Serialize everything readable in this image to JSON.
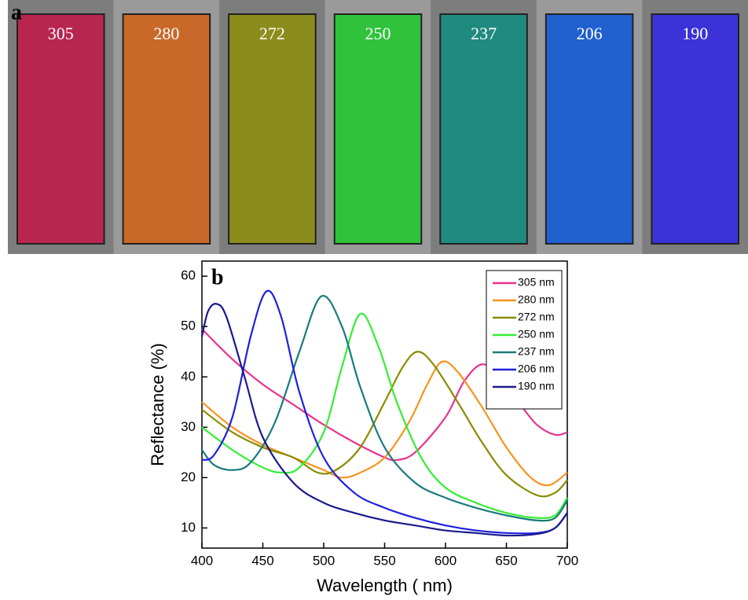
{
  "photo": {
    "label": "a",
    "swatches": [
      {
        "label": "305",
        "color": "#b8264f"
      },
      {
        "label": "280",
        "color": "#c8692a"
      },
      {
        "label": "272",
        "color": "#8c8c1c"
      },
      {
        "label": "250",
        "color": "#2fc23a"
      },
      {
        "label": "237",
        "color": "#1f8a80"
      },
      {
        "label": "206",
        "color": "#2160cf"
      },
      {
        "label": "190",
        "color": "#3b33d8"
      }
    ]
  },
  "chart_data": {
    "type": "line",
    "panel_label": "b",
    "x_label": "Wavelength (  nm)",
    "y_label": "Reflectance  (%)",
    "xlim": [
      400,
      700
    ],
    "ylim": [
      6,
      63
    ],
    "xticks": [
      400,
      450,
      500,
      550,
      600,
      650,
      700
    ],
    "yticks": [
      10,
      20,
      30,
      40,
      50,
      60
    ],
    "legend": "upper right",
    "series": [
      {
        "name": "305 nm",
        "color": "#e8338e",
        "x": [
          400,
          425,
          450,
          475,
          500,
          525,
          550,
          560,
          575,
          600,
          615,
          630,
          645,
          660,
          675,
          690,
          700
        ],
        "values": [
          49.5,
          43.5,
          38.5,
          34.5,
          30.5,
          27,
          24,
          23.5,
          25,
          32,
          39,
          42.5,
          40,
          35,
          30.5,
          28.5,
          29
        ]
      },
      {
        "name": "280 nm",
        "color": "#f7931e",
        "x": [
          400,
          425,
          450,
          475,
          500,
          515,
          530,
          550,
          570,
          585,
          597,
          610,
          630,
          650,
          670,
          685,
          700
        ],
        "values": [
          35,
          30,
          26.5,
          24,
          21.5,
          20,
          21,
          24,
          31,
          38.5,
          43,
          41,
          34,
          26,
          20,
          18.5,
          21
        ]
      },
      {
        "name": "272 nm",
        "color": "#8b8b00",
        "x": [
          400,
          425,
          450,
          475,
          495,
          510,
          530,
          550,
          565,
          577,
          590,
          610,
          630,
          650,
          675,
          690,
          700
        ],
        "values": [
          33.5,
          29,
          26,
          24,
          21,
          21.5,
          26,
          35,
          42,
          45,
          42.5,
          35,
          27,
          20.5,
          16.5,
          17,
          19.5
        ]
      },
      {
        "name": "250 nm",
        "color": "#33ee33",
        "x": [
          400,
          425,
          450,
          465,
          480,
          500,
          515,
          530,
          545,
          560,
          580,
          600,
          625,
          650,
          675,
          690,
          700
        ],
        "values": [
          30,
          25.5,
          22,
          21,
          22,
          29,
          42,
          52.5,
          46,
          35,
          24,
          18,
          15,
          13,
          12,
          12.5,
          16
        ]
      },
      {
        "name": "237 nm",
        "color": "#1a7a7a",
        "x": [
          400,
          410,
          425,
          440,
          460,
          480,
          498,
          515,
          530,
          550,
          575,
          600,
          625,
          650,
          675,
          690,
          700
        ],
        "values": [
          25.5,
          22.5,
          21.5,
          23,
          31,
          45,
          56,
          50,
          38,
          26,
          19,
          16,
          14,
          12.5,
          11.5,
          12,
          15.5
        ]
      },
      {
        "name": "206 nm",
        "color": "#1f1fe0",
        "x": [
          400,
          410,
          425,
          440,
          453,
          465,
          480,
          500,
          525,
          550,
          575,
          600,
          625,
          650,
          675,
          690,
          700
        ],
        "values": [
          23.5,
          24.5,
          32,
          48,
          57,
          52,
          37,
          24,
          17,
          14,
          12,
          10.5,
          9.5,
          9,
          9,
          10,
          13
        ]
      },
      {
        "name": "190 nm",
        "color": "#1a1a8c",
        "x": [
          400,
          405,
          412,
          420,
          435,
          450,
          475,
          500,
          525,
          550,
          575,
          600,
          625,
          650,
          675,
          690,
          700
        ],
        "values": [
          48,
          53,
          54.5,
          52,
          40,
          28,
          19,
          15,
          13,
          11.5,
          10.5,
          9.5,
          9,
          8.5,
          8.8,
          10,
          13
        ]
      }
    ]
  }
}
